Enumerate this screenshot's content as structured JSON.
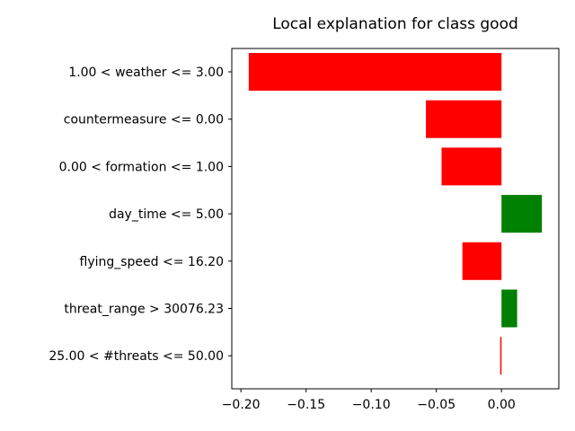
{
  "chart_data": {
    "type": "bar",
    "orientation": "horizontal",
    "title": "Local explanation for class good",
    "xlabel": "",
    "ylabel": "",
    "xlim": [
      -0.207,
      0.044
    ],
    "grid": false,
    "categories": [
      "1.00 < weather <= 3.00",
      "countermeasure <= 0.00",
      "0.00 < formation <= 1.00",
      "day_time <= 5.00",
      "flying_speed <= 16.20",
      "threat_range > 30076.23",
      "25.00 < #threats <= 50.00"
    ],
    "values": [
      -0.194,
      -0.058,
      -0.046,
      0.031,
      -0.03,
      0.012,
      -0.001
    ],
    "x_ticks": [
      -0.2,
      -0.15,
      -0.1,
      -0.05,
      0.0
    ],
    "x_tick_labels": [
      "−0.20",
      "−0.15",
      "−0.10",
      "−0.05",
      "0.00"
    ],
    "colors": {
      "positive": "#008000",
      "negative": "#ff0000"
    }
  }
}
